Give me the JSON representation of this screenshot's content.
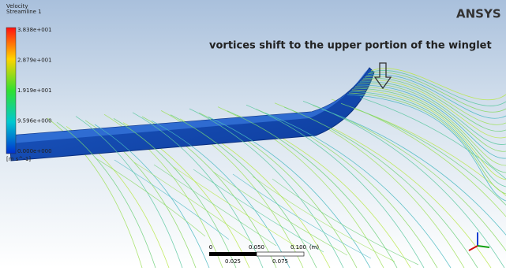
{
  "legend": {
    "title": "Velocity",
    "subtitle": "Streamline 1",
    "labels": [
      "3.838e+001",
      "2.879e+001",
      "1.919e+001",
      "9.596e+000",
      "0.000e+000"
    ],
    "unit": "[m s^-1]"
  },
  "annotation": "vortices shift to the upper portion of the winglet",
  "logo": "ANSYS",
  "scale_bar": {
    "top_labels": [
      "0",
      "0.050",
      "0.100",
      "(m)"
    ],
    "bottom_labels": [
      "0.025",
      "0.075"
    ]
  }
}
